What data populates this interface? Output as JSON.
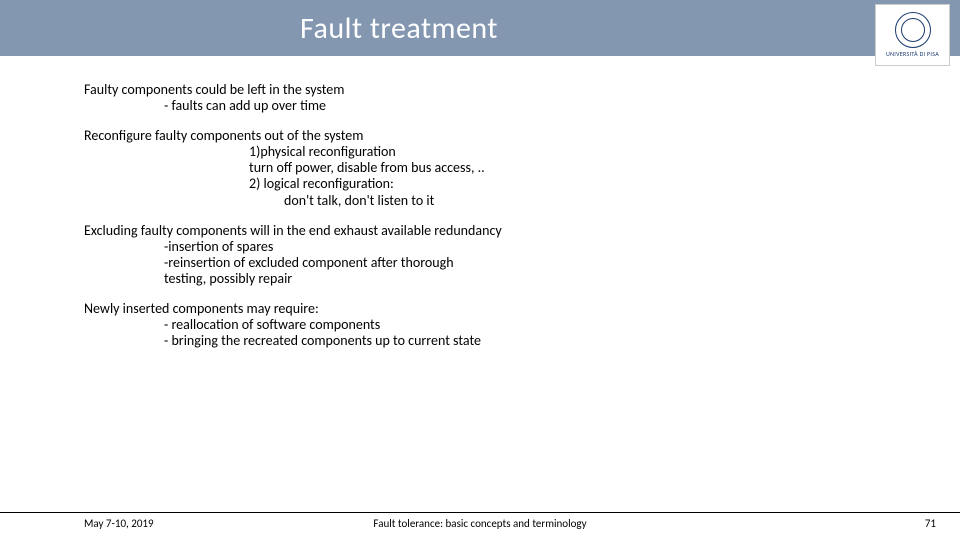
{
  "header": {
    "title": "Fault treatment",
    "band_color": "#8497b0",
    "title_color": "#ffffff",
    "logo_text": "UNIVERSITÀ DI PISA"
  },
  "body": {
    "para1_lead": "Faulty components could be left in the system",
    "para1_sub1": "- faults can add up over time",
    "para2_lead": "Reconfigure faulty components out of the system",
    "para2_sub1": "1)physical reconfiguration",
    "para2_sub2": "turn off power, disable from bus access, ..",
    "para2_sub3": "2) logical reconfiguration:",
    "para2_sub4": "don't talk, don't listen to it",
    "para3_lead": "Excluding faulty components will in the end exhaust available redundancy",
    "para3_sub1": "-insertion of  spares",
    "para3_sub2": "-reinsertion of excluded component after thorough",
    "para3_sub3": " testing, possibly repair",
    "para4_lead": "Newly inserted components may require:",
    "para4_sub1": "- reallocation of software components",
    "para4_sub2": "- bringing the recreated components up to current state"
  },
  "footer": {
    "date": "May 7-10, 2019",
    "center": "Fault tolerance: basic concepts and terminology",
    "page": "71"
  }
}
